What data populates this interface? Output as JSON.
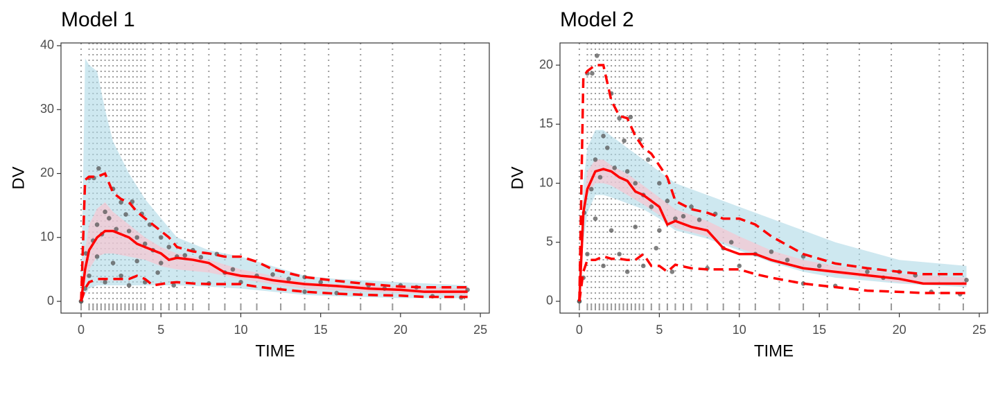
{
  "chart_data": [
    {
      "type": "line",
      "title": "Model 1",
      "x_label": "TIME",
      "y_label": "DV",
      "xlim": [
        -1.26,
        25.56
      ],
      "ylim": [
        -1.84,
        40.43
      ],
      "xticks": [
        0,
        5,
        10,
        15,
        20,
        25
      ],
      "yticks": [
        0,
        10,
        20,
        30,
        40
      ],
      "bin_lines": [
        0,
        0.5,
        0.75,
        1,
        1.25,
        1.5,
        1.75,
        2,
        2.25,
        2.5,
        2.75,
        3,
        3.25,
        3.5,
        3.75,
        4,
        4.5,
        5,
        5.5,
        6,
        6.5,
        7,
        8,
        9,
        10,
        11,
        12.5,
        14,
        15.5,
        17.5,
        19.5,
        22.5,
        24
      ],
      "band_x": [
        0,
        0.25,
        0.5,
        1,
        1.5,
        2,
        3,
        4,
        5,
        6,
        8,
        10,
        12,
        14,
        16,
        20,
        24.2
      ],
      "bands": [
        {
          "color": "#add8e6",
          "lower": [
            0,
            1,
            2,
            2.5,
            2.5,
            2.5,
            2.5,
            2.5,
            2.5,
            2.5,
            2.3,
            2,
            1.5,
            1,
            0.8,
            0.5,
            0.5
          ],
          "upper": [
            0,
            38,
            37,
            36,
            30,
            25,
            20,
            16,
            13,
            10,
            8,
            7,
            5.5,
            4,
            3.5,
            3,
            2.5
          ]
        },
        {
          "color": "#ffc0cb",
          "lower": [
            0,
            3,
            5,
            7,
            7.5,
            7.5,
            7,
            6.5,
            5.5,
            5,
            4.5,
            3.5,
            2.7,
            2,
            1.7,
            1.3,
            1
          ],
          "upper": [
            0,
            8,
            12,
            14.5,
            15.5,
            14,
            12,
            10,
            8.5,
            7.5,
            6.5,
            5,
            4,
            3,
            2.7,
            2.3,
            2
          ]
        }
      ],
      "points": {
        "color": "#555555",
        "x": [
          0,
          0,
          0.25,
          0.3,
          0.5,
          0.5,
          0.75,
          0.8,
          1,
          1,
          1.1,
          1.3,
          1.5,
          1.5,
          1.75,
          2,
          2,
          2.2,
          2.5,
          2.5,
          2.8,
          3,
          3,
          3.2,
          3.5,
          3.5,
          3.8,
          4,
          4,
          4.3,
          4.5,
          4.8,
          5,
          5,
          5.5,
          5.8,
          6,
          6.5,
          7,
          7.5,
          8,
          8.5,
          9,
          9.5,
          10,
          11,
          12,
          13,
          14,
          14,
          15,
          16,
          18,
          19,
          20,
          21,
          22,
          23.8,
          24.2
        ],
        "y": [
          0,
          0,
          2,
          7.5,
          4,
          19.3,
          9.5,
          19.3,
          7,
          12,
          20.8,
          10.5,
          3,
          14,
          13,
          17.6,
          6,
          11.3,
          15.5,
          4,
          13.6,
          2.5,
          11,
          15.6,
          6.3,
          10,
          13.7,
          3,
          9,
          12,
          8,
          4.5,
          6,
          10,
          8.5,
          2.5,
          7,
          7.2,
          8,
          6.9,
          2.8,
          7.4,
          4.5,
          5,
          3,
          4,
          4.2,
          3.5,
          1.5,
          3.8,
          3,
          1.3,
          2.5,
          2,
          2.5,
          2.2,
          0.8,
          0.6,
          1.8
        ]
      },
      "x": [
        0,
        0.25,
        0.5,
        1,
        1.5,
        2,
        2.5,
        3,
        3.5,
        4,
        4.5,
        5,
        5.5,
        6,
        7,
        8,
        9,
        10,
        11,
        12,
        14,
        16,
        18,
        20,
        21.5,
        24.2
      ],
      "series": [
        {
          "color": "#ff0000",
          "dashed": false,
          "values": [
            0,
            5,
            8,
            10,
            11,
            11,
            10.5,
            10,
            9,
            8.5,
            8,
            7.5,
            6.5,
            6.8,
            6.5,
            6,
            4.5,
            4,
            3.8,
            3.3,
            2.7,
            2.4,
            2,
            1.8,
            1.5,
            1.5
          ]
        },
        {
          "color": "#ff0000",
          "dashed": true,
          "values": [
            0,
            19,
            19.5,
            19.5,
            20,
            17,
            16,
            15.5,
            14,
            13,
            12,
            11,
            10,
            8.5,
            7.8,
            7.5,
            7,
            7,
            6.2,
            5,
            3.8,
            3.2,
            2.7,
            2.3,
            2.2,
            2.2
          ]
        },
        {
          "color": "#ff0000",
          "dashed": true,
          "values": [
            0,
            2,
            3,
            3.5,
            3.5,
            3.5,
            3.5,
            3.5,
            4,
            3.5,
            2.5,
            2.7,
            2.9,
            3,
            2.8,
            2.7,
            2.7,
            2.7,
            2.3,
            2,
            1.5,
            1.2,
            1,
            0.9,
            0.7,
            0.7
          ]
        }
      ]
    },
    {
      "type": "line",
      "title": "Model 2",
      "x_label": "TIME",
      "y_label": "DV",
      "xlim": [
        -1.21,
        25.52
      ],
      "ylim": [
        -1.0,
        21.88
      ],
      "xticks": [
        0,
        5,
        10,
        15,
        20,
        25
      ],
      "yticks": [
        0,
        5,
        10,
        15,
        20
      ],
      "bin_lines": [
        0,
        0.5,
        0.75,
        1,
        1.25,
        1.5,
        1.75,
        2,
        2.25,
        2.5,
        2.75,
        3,
        3.25,
        3.5,
        3.75,
        4,
        4.5,
        5,
        5.5,
        6,
        6.5,
        7,
        8,
        9,
        10,
        11,
        12.5,
        14,
        15.5,
        17.5,
        19.5,
        22.5,
        24
      ],
      "band_x": [
        0,
        0.25,
        0.5,
        1,
        1.5,
        2,
        3,
        4,
        5,
        6,
        8,
        10,
        12,
        14,
        16,
        20,
        24.2
      ],
      "bands": [
        {
          "color": "#add8e6",
          "lower": [
            0,
            5,
            7.5,
            9,
            9,
            8.8,
            8.3,
            7.8,
            7,
            6,
            5.3,
            4.3,
            3.3,
            2.5,
            2,
            1.5,
            1.2
          ],
          "upper": [
            0,
            10,
            13,
            14.5,
            14.5,
            14,
            13,
            12,
            11,
            10,
            9,
            8,
            7,
            6,
            5,
            3.5,
            3
          ]
        },
        {
          "color": "#ffc0cb",
          "lower": [
            0,
            7,
            9,
            10,
            10,
            9.8,
            9,
            8.2,
            7.3,
            6.2,
            5.5,
            4.5,
            3.5,
            2.8,
            2.3,
            1.6,
            1.3
          ],
          "upper": [
            0,
            8.5,
            11,
            12,
            12,
            11.5,
            10.8,
            9.8,
            8.8,
            7.8,
            6.8,
            5.5,
            4.3,
            3.5,
            3,
            2.3,
            2
          ]
        }
      ],
      "points": {
        "color": "#555555",
        "x": [
          0,
          0,
          0.25,
          0.3,
          0.5,
          0.5,
          0.75,
          0.8,
          1,
          1,
          1.1,
          1.3,
          1.5,
          1.5,
          1.75,
          2,
          2,
          2.2,
          2.5,
          2.5,
          2.8,
          3,
          3,
          3.2,
          3.5,
          3.5,
          3.8,
          4,
          4,
          4.3,
          4.5,
          4.8,
          5,
          5,
          5.5,
          5.8,
          6,
          6.5,
          7,
          7.5,
          8,
          8.5,
          9,
          9.5,
          10,
          11,
          12,
          13,
          14,
          14,
          15,
          16,
          18,
          19,
          20,
          21,
          22,
          23.8,
          24.2
        ],
        "y": [
          0,
          0,
          2,
          7.5,
          4,
          19.3,
          9.5,
          19.3,
          7,
          12,
          20.8,
          10.5,
          3,
          14,
          13,
          17.6,
          6,
          11.3,
          15.5,
          4,
          13.6,
          2.5,
          11,
          15.6,
          6.3,
          10,
          13.7,
          3,
          9,
          12,
          8,
          4.5,
          6,
          10,
          8.5,
          2.5,
          7,
          7.2,
          8,
          6.9,
          2.8,
          7.4,
          4.5,
          5,
          3,
          4,
          4.2,
          3.5,
          1.5,
          3.8,
          3,
          1.3,
          2.5,
          2,
          2.5,
          2.2,
          0.8,
          0.6,
          1.8
        ]
      },
      "x": [
        0,
        0.25,
        0.5,
        1,
        1.5,
        2,
        2.5,
        3,
        3.5,
        4,
        4.5,
        5,
        5.5,
        6,
        7,
        8,
        9,
        10,
        11,
        12,
        14,
        16,
        18,
        20,
        21.5,
        24.2
      ],
      "series": [
        {
          "color": "#ff0000",
          "dashed": false,
          "values": [
            0,
            7.5,
            9.5,
            11,
            11.2,
            11,
            10.5,
            10.2,
            9.3,
            9,
            8.5,
            8,
            6.5,
            6.8,
            6.3,
            6,
            4.5,
            4,
            4,
            3.5,
            2.8,
            2.5,
            2.2,
            1.9,
            1.5,
            1.5
          ]
        },
        {
          "color": "#ff0000",
          "dashed": true,
          "values": [
            0,
            19,
            19.5,
            20,
            20,
            17,
            15.7,
            15.5,
            14,
            13,
            12.5,
            11.5,
            10.5,
            8.5,
            7.8,
            7.5,
            7,
            7,
            6.5,
            5.5,
            4,
            3.2,
            2.8,
            2.5,
            2.3,
            2.3
          ]
        },
        {
          "color": "#ff0000",
          "dashed": true,
          "values": [
            0,
            2.5,
            3.5,
            3.5,
            3.8,
            3.6,
            3.6,
            3.5,
            3.5,
            4,
            3,
            3,
            2.5,
            3.1,
            2.8,
            2.7,
            2.7,
            2.7,
            2.3,
            2,
            1.5,
            1.2,
            0.9,
            0.8,
            0.7,
            0.7
          ]
        }
      ]
    }
  ]
}
